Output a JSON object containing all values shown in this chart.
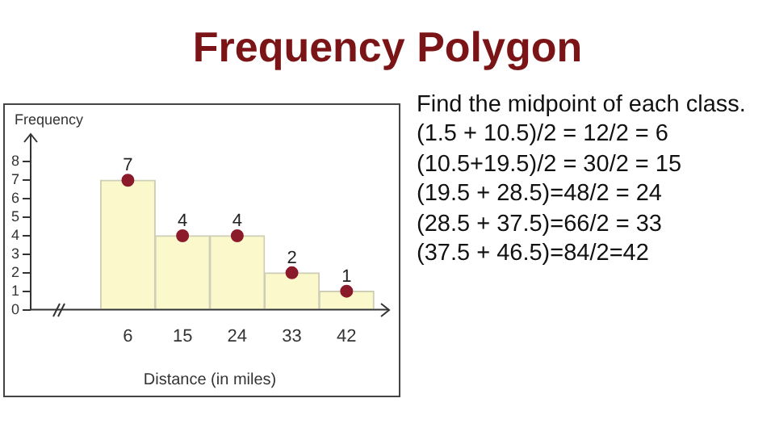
{
  "chart_data": {
    "type": "histogram",
    "title": "Frequency Polygon",
    "xlabel": "Distance (in miles)",
    "ylabel": "Frequency",
    "bins": [
      1.5,
      10.5,
      19.5,
      28.5,
      37.5,
      46.5
    ],
    "series": [
      {
        "color": "#fbf8cc",
        "values": [
          7,
          4,
          4,
          2,
          1
        ]
      },
      {
        "type": "scatter",
        "color": "#8b1a2b",
        "x": [
          6,
          15,
          24,
          33,
          42
        ],
        "values": [
          7,
          4,
          4,
          2,
          1
        ],
        "value_labels": [
          "7",
          "4",
          "4",
          "2",
          "1"
        ]
      }
    ],
    "xlim": [
      -10,
      49
    ],
    "xticks": [
      6,
      15,
      24,
      33,
      42
    ],
    "ylim": [
      0,
      9.5
    ],
    "yticks": [
      0,
      1,
      2,
      3,
      4,
      5,
      6,
      7,
      8
    ],
    "marker": "circle",
    "grid": false,
    "legend": false,
    "annotations": [
      "Find the midpoint of each class.",
      "(1.5 + 10.5)/2 = 12/2 = 6",
      "(10.5+19.5)/2 = 30/2 = 15",
      "(19.5 + 28.5)=48/2 = 24",
      "(28.5 + 37.5)=66/2 = 33",
      "(37.5 + 46.5)=84/2=42"
    ]
  }
}
